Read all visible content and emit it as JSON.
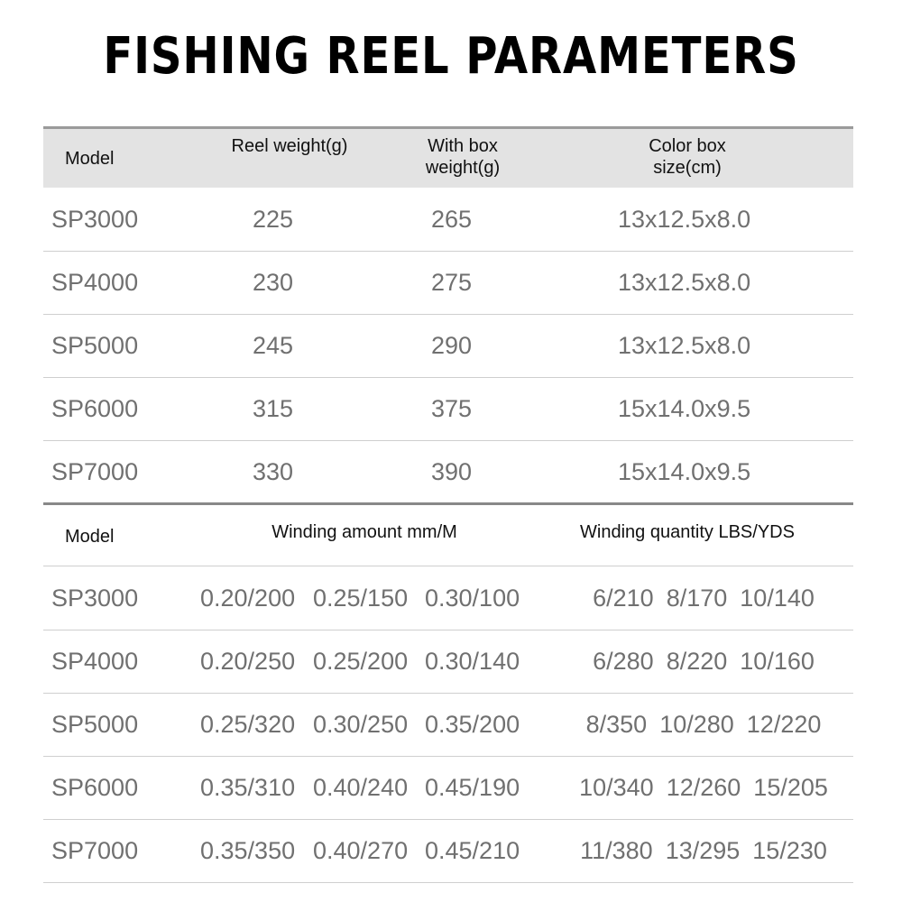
{
  "title": "FISHING REEL PARAMETERS",
  "table1": {
    "header": [
      "Model",
      "Reel weight(g)",
      "With box weight(g)",
      "Color box size(cm)"
    ],
    "rows": [
      [
        "SP3000",
        "225",
        "265",
        "13x12.5x8.0"
      ],
      [
        "SP4000",
        "230",
        "275",
        "13x12.5x8.0"
      ],
      [
        "SP5000",
        "245",
        "290",
        "13x12.5x8.0"
      ],
      [
        "SP6000",
        "315",
        "375",
        "15x14.0x9.5"
      ],
      [
        "SP7000",
        "330",
        "390",
        "15x14.0x9.5"
      ]
    ]
  },
  "table2": {
    "header": [
      "Model",
      "Winding amount mm/M",
      "Winding quantity LBS/YDS"
    ],
    "rows": [
      [
        "SP3000",
        [
          "0.20/200",
          "0.25/150",
          "0.30/100"
        ],
        [
          "6/210",
          "8/170",
          "10/140"
        ]
      ],
      [
        "SP4000",
        [
          "0.20/250",
          "0.25/200",
          "0.30/140"
        ],
        [
          "6/280",
          "8/220",
          "10/160"
        ]
      ],
      [
        "SP5000",
        [
          "0.25/320",
          "0.30/250",
          "0.35/200"
        ],
        [
          "8/350",
          "10/280",
          "12/220"
        ]
      ],
      [
        "SP6000",
        [
          "0.35/310",
          "0.40/240",
          "0.45/190"
        ],
        [
          "10/340",
          "12/260",
          "15/205"
        ]
      ],
      [
        "SP7000",
        [
          "0.35/350",
          "0.40/270",
          "0.45/210"
        ],
        [
          "11/380",
          "13/295",
          "15/230"
        ]
      ]
    ]
  }
}
